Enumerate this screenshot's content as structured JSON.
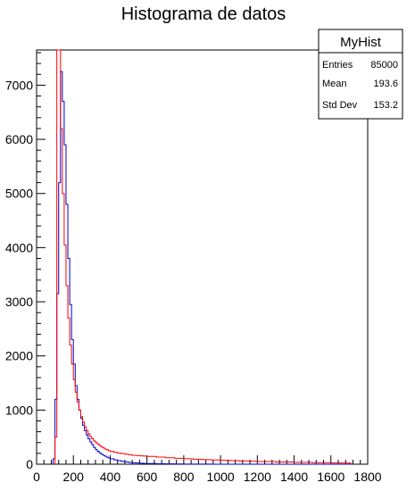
{
  "chart_data": {
    "type": "histogram",
    "title": "Histograma de datos",
    "xlabel": "",
    "ylabel": "",
    "xlim": [
      0,
      1800
    ],
    "ylim": [
      0,
      7650
    ],
    "x_ticks": [
      "0",
      "200",
      "400",
      "600",
      "800",
      "1000",
      "1200",
      "1400",
      "1600",
      "1800"
    ],
    "y_ticks": [
      "0",
      "1000",
      "2000",
      "3000",
      "4000",
      "5000",
      "6000",
      "7000"
    ],
    "x_tick_values": [
      0,
      200,
      400,
      600,
      800,
      1000,
      1200,
      1400,
      1600,
      1800
    ],
    "y_tick_values": [
      0,
      1000,
      2000,
      3000,
      4000,
      5000,
      6000,
      7000
    ],
    "bin_width": 10,
    "series": [
      {
        "color": "#0000cc",
        "x": [
          90,
          100,
          110,
          120,
          130,
          140,
          150,
          160,
          170,
          180,
          190,
          200,
          210,
          220,
          230,
          240,
          250,
          260,
          270,
          280,
          290,
          300,
          310,
          320,
          330,
          340,
          350,
          360,
          370,
          380,
          390,
          400,
          420,
          440,
          460,
          480,
          500,
          520,
          540,
          560,
          580,
          600,
          650,
          700,
          750,
          800,
          850,
          900,
          950,
          1000,
          1050,
          1100,
          1150,
          1200,
          1300,
          1400,
          1500,
          1600,
          1700
        ],
        "y": [
          100,
          1200,
          3150,
          5200,
          7250,
          6700,
          5900,
          4800,
          3800,
          2950,
          2300,
          1850,
          1450,
          1200,
          1000,
          850,
          720,
          620,
          540,
          470,
          410,
          360,
          310,
          270,
          240,
          210,
          185,
          165,
          148,
          130,
          115,
          100,
          80,
          65,
          52,
          42,
          34,
          27,
          22,
          18,
          15,
          12,
          8,
          6,
          4,
          3,
          2,
          2,
          1,
          1,
          1,
          0,
          0,
          0,
          0,
          0,
          0,
          0,
          0
        ]
      },
      {
        "color": "#ff0000",
        "x": [
          100,
          110,
          120,
          130,
          140,
          150,
          160,
          170,
          180,
          190,
          200,
          210,
          220,
          230,
          240,
          250,
          260,
          270,
          280,
          290,
          300,
          310,
          320,
          330,
          340,
          350,
          360,
          370,
          380,
          390,
          400,
          420,
          440,
          460,
          480,
          500,
          520,
          540,
          560,
          580,
          600,
          650,
          700,
          750,
          800,
          850,
          900,
          950,
          1000,
          1050,
          1100,
          1150,
          1200,
          1300,
          1400,
          1500,
          1600,
          1700
        ],
        "y": [
          500,
          7650,
          7650,
          6200,
          5000,
          4050,
          3300,
          2700,
          2200,
          1850,
          1560,
          1330,
          1150,
          1000,
          880,
          780,
          690,
          620,
          560,
          510,
          470,
          430,
          400,
          370,
          345,
          320,
          300,
          280,
          265,
          250,
          235,
          220,
          205,
          195,
          185,
          175,
          165,
          160,
          155,
          150,
          145,
          132,
          120,
          110,
          100,
          92,
          85,
          78,
          72,
          66,
          60,
          55,
          50,
          42,
          35,
          28,
          22,
          16
        ]
      }
    ]
  },
  "stats_box": {
    "title": "MyHist",
    "rows": [
      {
        "label": "Entries",
        "value": "85000"
      },
      {
        "label": "Mean",
        "value": "193.6"
      },
      {
        "label": "Std Dev",
        "value": "153.2"
      }
    ]
  }
}
